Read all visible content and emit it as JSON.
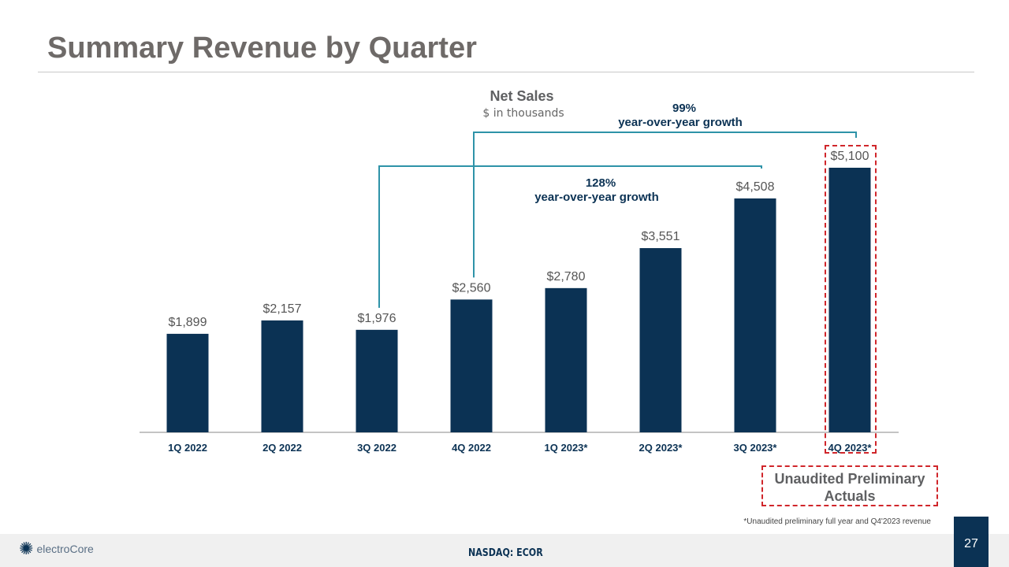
{
  "title": "Summary Revenue by Quarter",
  "chart_data": {
    "type": "bar",
    "title": "Net Sales",
    "subtitle": "$ in thousands",
    "categories": [
      "1Q 2022",
      "2Q 2022",
      "3Q 2022",
      "4Q 2022",
      "1Q 2023*",
      "2Q 2023*",
      "3Q 2023*",
      "4Q 2023*"
    ],
    "values": [
      1899,
      2157,
      1976,
      2560,
      2780,
      3551,
      4508,
      5100
    ],
    "data_labels": [
      "$1,899",
      "$2,157",
      "$1,976",
      "$2,560",
      "$2,780",
      "$3,551",
      "$4,508",
      "$5,100"
    ],
    "bar_color": "#0b3254",
    "annotations": [
      {
        "from": "3Q 2022",
        "to": "3Q 2023*",
        "pct": "128%",
        "text": "year-over-year growth"
      },
      {
        "from": "4Q 2022",
        "to": "4Q 2023*",
        "pct": "99%",
        "text": "year-over-year growth"
      }
    ]
  },
  "unaudited_box": "Unaudited Preliminary Actuals",
  "footnote": "*Unaudited preliminary full year and Q4'2023 revenue",
  "footer": {
    "logo": "electroCore",
    "ticker": "NASDAQ: ECOR",
    "page": "27"
  }
}
